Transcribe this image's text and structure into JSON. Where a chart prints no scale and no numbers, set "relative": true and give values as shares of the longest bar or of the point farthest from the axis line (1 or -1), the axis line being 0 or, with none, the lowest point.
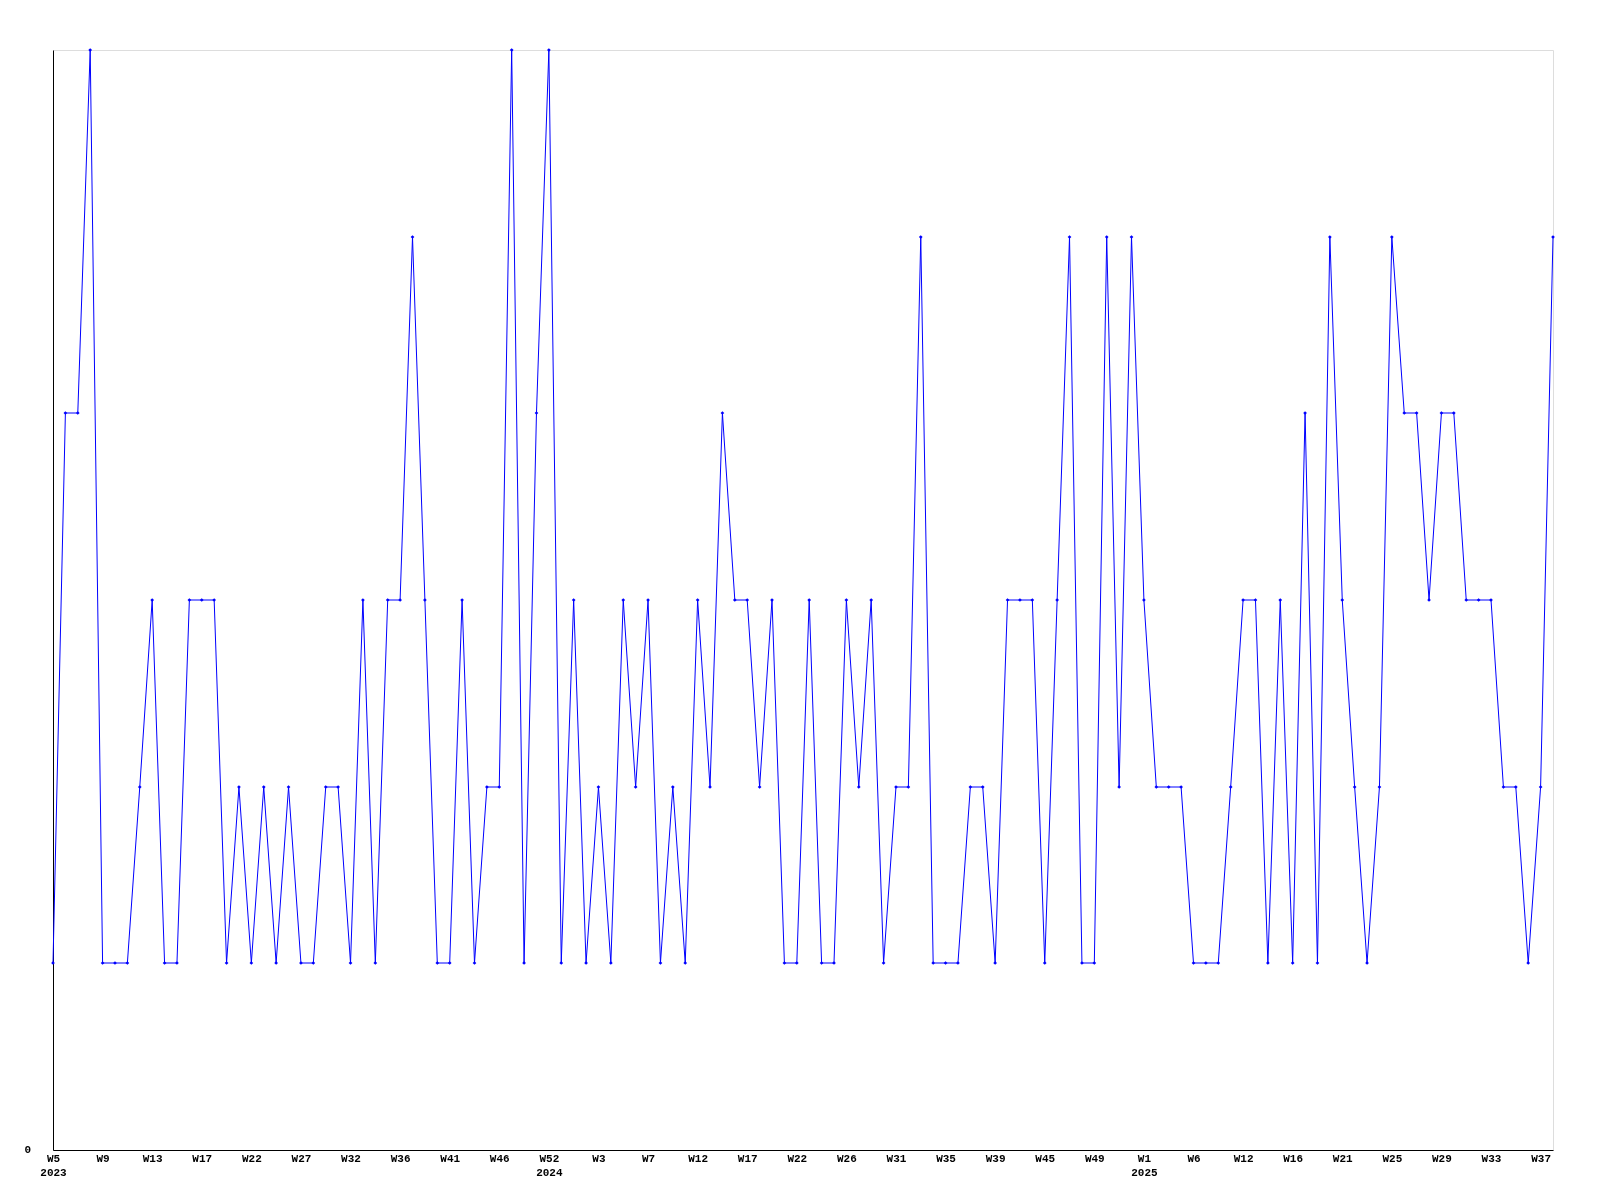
{
  "chart_data": {
    "type": "line",
    "relative": true,
    "categories": [
      "W5\n2023",
      null,
      null,
      null,
      "W9",
      null,
      null,
      null,
      "W13",
      null,
      null,
      null,
      "W17",
      null,
      null,
      null,
      "W22",
      null,
      null,
      null,
      "W27",
      null,
      null,
      null,
      "W32",
      null,
      null,
      null,
      "W36",
      null,
      null,
      null,
      "W41",
      null,
      null,
      null,
      "W46",
      null,
      null,
      null,
      "W52\n2024",
      null,
      null,
      null,
      "W3",
      null,
      null,
      null,
      "W7",
      null,
      null,
      null,
      "W12",
      null,
      null,
      null,
      "W17",
      null,
      null,
      null,
      "W22",
      null,
      null,
      null,
      "W26",
      null,
      null,
      null,
      "W31",
      null,
      null,
      null,
      "W35",
      null,
      null,
      null,
      "W39",
      null,
      null,
      null,
      "W45",
      null,
      null,
      null,
      "W49",
      null,
      null,
      null,
      "W1\n2025",
      null,
      null,
      null,
      "W6",
      null,
      null,
      null,
      "W12",
      null,
      null,
      null,
      "W16",
      null,
      null,
      null,
      "W21",
      null,
      null,
      null,
      "W25",
      null,
      null,
      null,
      "W29",
      null,
      null,
      null,
      "W33",
      null,
      null,
      null,
      "W37",
      null
    ],
    "series": [
      {
        "color": "#0000ff",
        "values": [
          0.17,
          0.67,
          0.67,
          1,
          0.17,
          0.17,
          0.17,
          0.33,
          0.5,
          0.17,
          0.17,
          0.5,
          0.5,
          0.5,
          0.17,
          0.33,
          0.17,
          0.33,
          0.17,
          0.33,
          0.17,
          0.17,
          0.33,
          0.33,
          0.17,
          0.5,
          0.17,
          0.5,
          0.5,
          0.83,
          0.5,
          0.17,
          0.17,
          0.5,
          0.17,
          0.33,
          0.33,
          1,
          0.17,
          0.67,
          1,
          0.17,
          0.5,
          0.17,
          0.33,
          0.17,
          0.5,
          0.33,
          0.5,
          0.17,
          0.33,
          0.17,
          0.5,
          0.33,
          0.67,
          0.5,
          0.5,
          0.33,
          0.5,
          0.17,
          0.17,
          0.5,
          0.17,
          0.17,
          0.5,
          0.33,
          0.5,
          0.17,
          0.33,
          0.33,
          0.83,
          0.17,
          0.17,
          0.17,
          0.33,
          0.33,
          0.17,
          0.5,
          0.5,
          0.5,
          0.17,
          0.5,
          0.83,
          0.17,
          0.17,
          0.83,
          0.33,
          0.83,
          0.5,
          0.33,
          0.33,
          0.33,
          0.17,
          0.17,
          0.17,
          0.33,
          0.5,
          0.5,
          0.17,
          0.5,
          0.17,
          0.67,
          0.17,
          0.83,
          0.5,
          0.33,
          0.17,
          0.33,
          0.83,
          0.67,
          0.67,
          0.5,
          0.67,
          0.67,
          0.5,
          0.5,
          0.5,
          0.33,
          0.33,
          0.17,
          0.33,
          0.83
        ]
      }
    ],
    "marker": "diamond",
    "line_style": "solid",
    "grid": false,
    "annotations": [
      "0"
    ]
  }
}
